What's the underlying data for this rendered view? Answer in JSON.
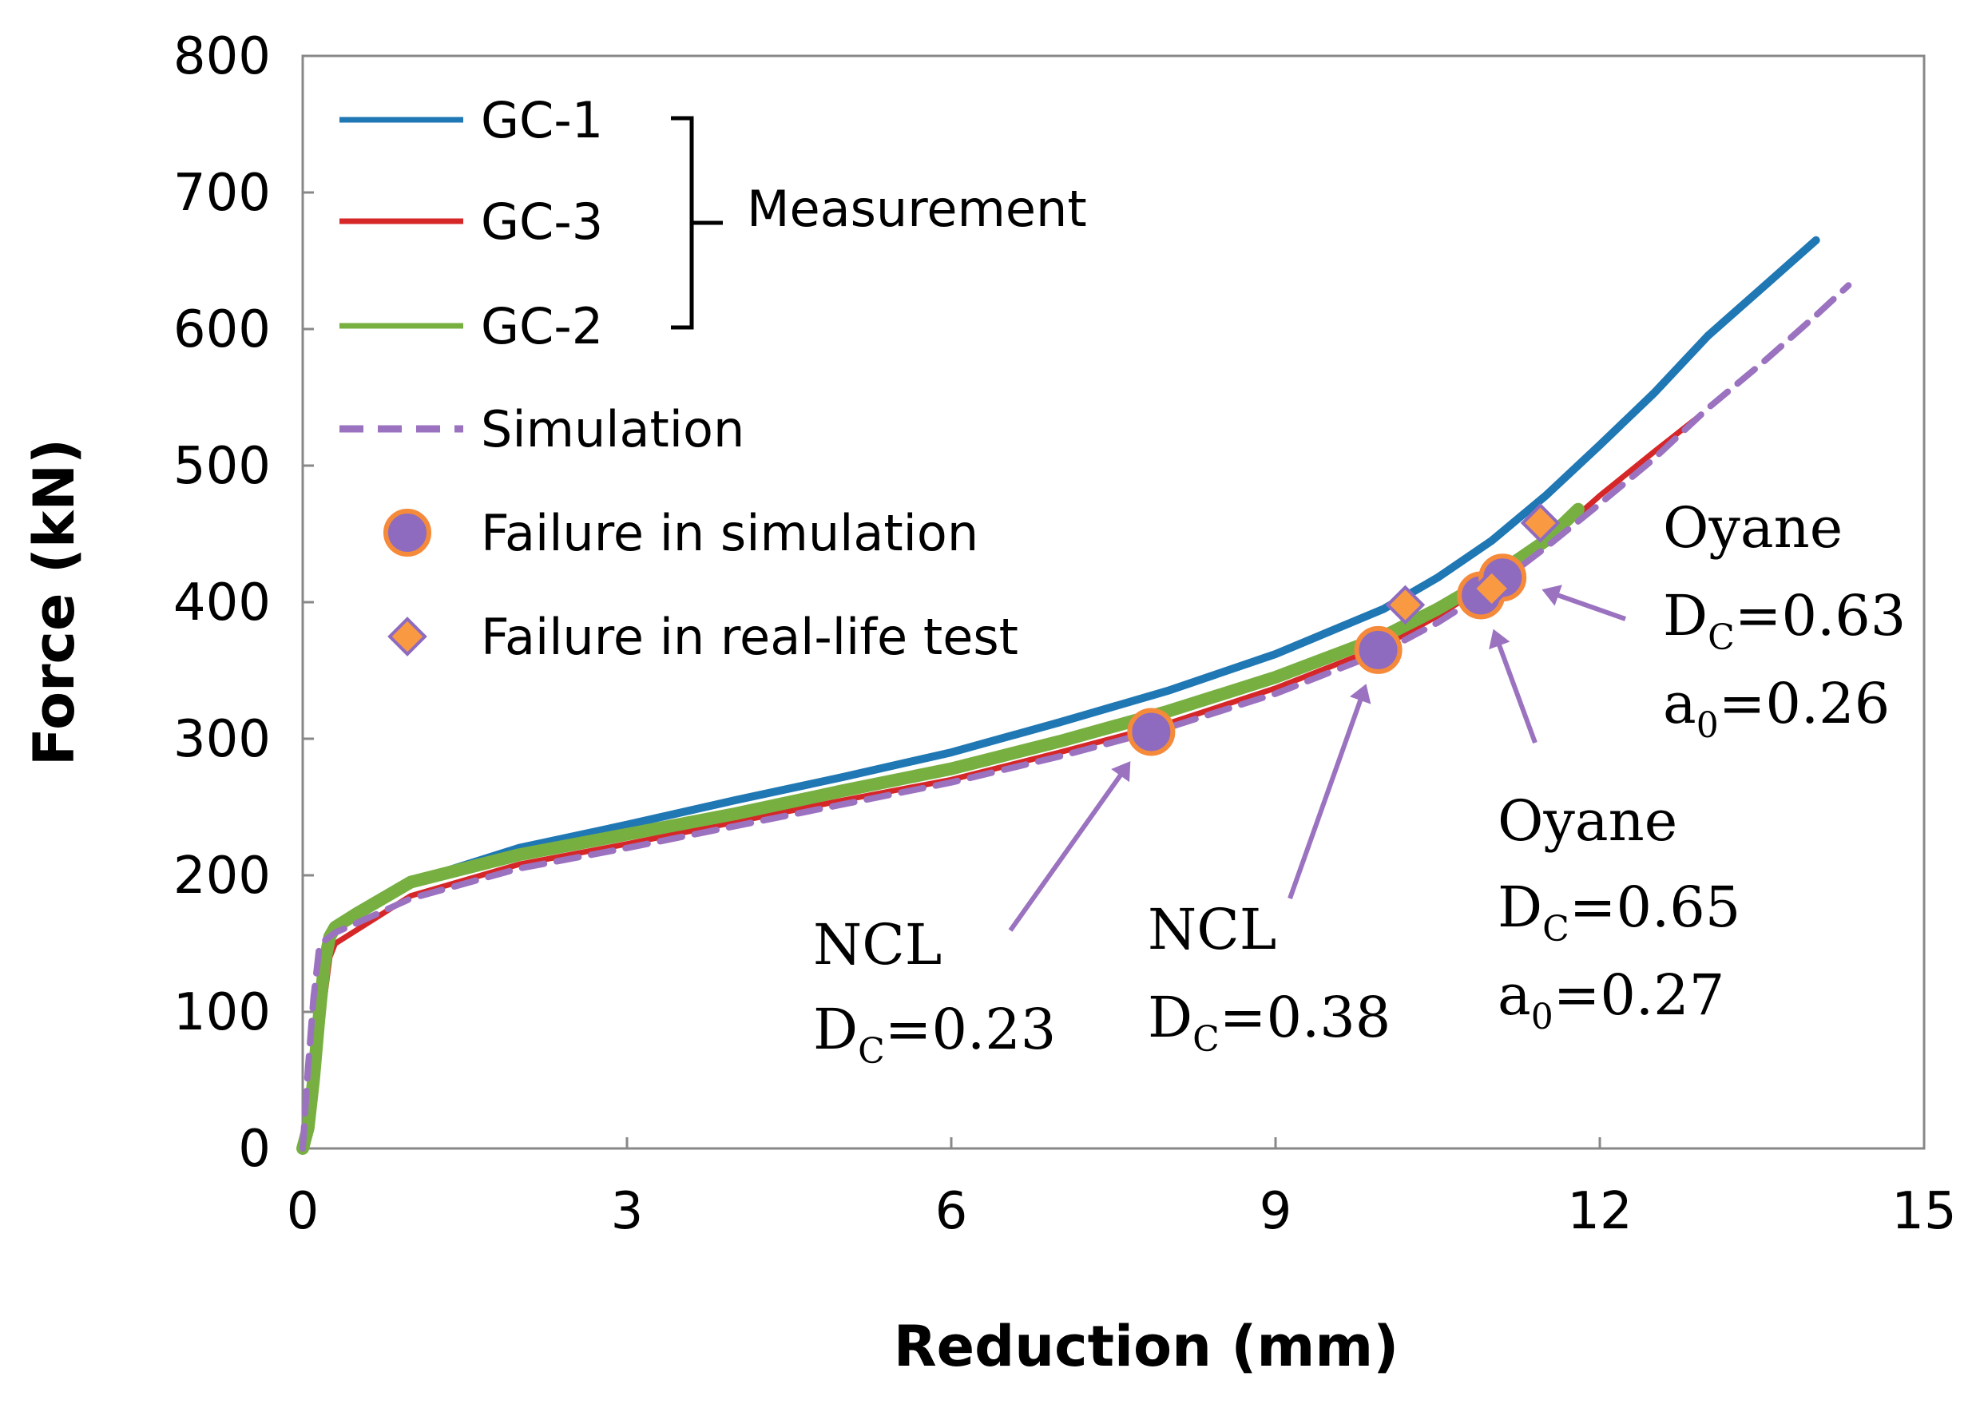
{
  "chart_data": {
    "type": "line",
    "xlabel": "Reduction (mm)",
    "ylabel": "Force (kN)",
    "xlim": [
      0,
      15
    ],
    "ylim": [
      0,
      800
    ],
    "xticks": [
      "0",
      "3",
      "6",
      "9",
      "12",
      "15"
    ],
    "yticks": [
      "0",
      "100",
      "200",
      "300",
      "400",
      "500",
      "600",
      "700",
      "800"
    ],
    "legend_placement": "top-left",
    "legend_group_label": "Measurement",
    "series": [
      {
        "name": "GC-1",
        "color": "#1f77b4",
        "style": "solid-jagged",
        "x": [
          0,
          0.05,
          0.1,
          0.15,
          0.2,
          0.25,
          0.3,
          0.5,
          1,
          2,
          3,
          4,
          5,
          6,
          7,
          8,
          9,
          10,
          10.5,
          11,
          11.5,
          12,
          12.5,
          13,
          13.5,
          14
        ],
        "y": [
          0,
          10,
          40,
          80,
          120,
          150,
          160,
          172,
          195,
          220,
          237,
          255,
          272,
          290,
          312,
          335,
          362,
          395,
          418,
          445,
          478,
          515,
          553,
          595,
          630,
          665
        ]
      },
      {
        "name": "GC-3",
        "color": "#d62728",
        "style": "solid",
        "x": [
          0,
          0.05,
          0.1,
          0.15,
          0.2,
          0.25,
          0.3,
          0.5,
          1,
          2,
          3,
          4,
          5,
          6,
          7,
          8,
          9,
          10,
          10.5,
          11,
          11.5,
          12,
          12.5,
          12.9
        ],
        "y": [
          0,
          10,
          35,
          70,
          110,
          140,
          150,
          160,
          185,
          208,
          223,
          239,
          255,
          270,
          290,
          311,
          337,
          368,
          390,
          415,
          443,
          478,
          510,
          535
        ]
      },
      {
        "name": "GC-2",
        "color": "#77b041",
        "style": "solid-thick",
        "x": [
          0,
          0.05,
          0.1,
          0.15,
          0.2,
          0.25,
          0.3,
          0.5,
          1,
          2,
          3,
          4,
          5,
          6,
          7,
          8,
          9,
          10,
          10.5,
          11,
          11.5,
          11.8
        ],
        "y": [
          0,
          15,
          50,
          95,
          135,
          155,
          162,
          172,
          195,
          215,
          230,
          245,
          262,
          278,
          298,
          320,
          345,
          375,
          395,
          418,
          445,
          468
        ]
      },
      {
        "name": "Simulation",
        "color": "#9b72c0",
        "style": "dashed",
        "x": [
          0,
          0.05,
          0.1,
          0.15,
          0.2,
          0.3,
          0.5,
          1,
          2,
          3,
          4,
          5,
          6,
          7,
          8,
          9,
          10,
          10.5,
          11,
          11.5,
          12,
          12.5,
          13,
          13.5,
          14,
          14.3
        ],
        "y": [
          0,
          60,
          110,
          145,
          152,
          158,
          165,
          183,
          205,
          220,
          236,
          252,
          268,
          287,
          308,
          333,
          364,
          385,
          410,
          440,
          472,
          505,
          542,
          575,
          610,
          632
        ]
      }
    ],
    "markers": [
      {
        "name": "Failure in simulation",
        "shape": "circle",
        "fill": "#8e6bbf",
        "stroke": "#f58a3a",
        "points": [
          {
            "x": 7.85,
            "y": 305
          },
          {
            "x": 9.95,
            "y": 365
          },
          {
            "x": 10.9,
            "y": 405
          },
          {
            "x": 11.1,
            "y": 418
          }
        ]
      },
      {
        "name": "Failure in real-life test",
        "shape": "diamond",
        "fill": "#f99a42",
        "stroke": "#8e6bbf",
        "points": [
          {
            "x": 10.2,
            "y": 398
          },
          {
            "x": 11.0,
            "y": 410
          },
          {
            "x": 11.45,
            "y": 458
          }
        ]
      }
    ],
    "annotations": [
      {
        "id": "ncl1",
        "lines": [
          "NCL",
          "DC=0.23"
        ],
        "target": {
          "x": 7.85,
          "y": 305
        }
      },
      {
        "id": "ncl2",
        "lines": [
          "NCL",
          "DC=0.38"
        ],
        "target": {
          "x": 9.95,
          "y": 365
        }
      },
      {
        "id": "oy1",
        "lines": [
          "Oyane",
          "DC=0.65",
          "a0=0.27"
        ],
        "target": {
          "x": 10.9,
          "y": 405
        }
      },
      {
        "id": "oy2",
        "lines": [
          "Oyane",
          "DC=0.63",
          "a0=0.26"
        ],
        "target": {
          "x": 11.15,
          "y": 418
        }
      }
    ]
  },
  "labels": {
    "ncl1": {
      "name": "NCL",
      "d": "D",
      "dsub": "C",
      "dval": "=0.23"
    },
    "ncl2": {
      "name": "NCL",
      "d": "D",
      "dsub": "C",
      "dval": "=0.38"
    },
    "oy1": {
      "name": "Oyane",
      "d": "D",
      "dsub": "C",
      "dval": "=0.65",
      "a": "a",
      "asub": "0",
      "aval": "=0.27"
    },
    "oy2": {
      "name": "Oyane",
      "d": "D",
      "dsub": "C",
      "dval": "=0.63",
      "a": "a",
      "asub": "0",
      "aval": "=0.26"
    }
  }
}
